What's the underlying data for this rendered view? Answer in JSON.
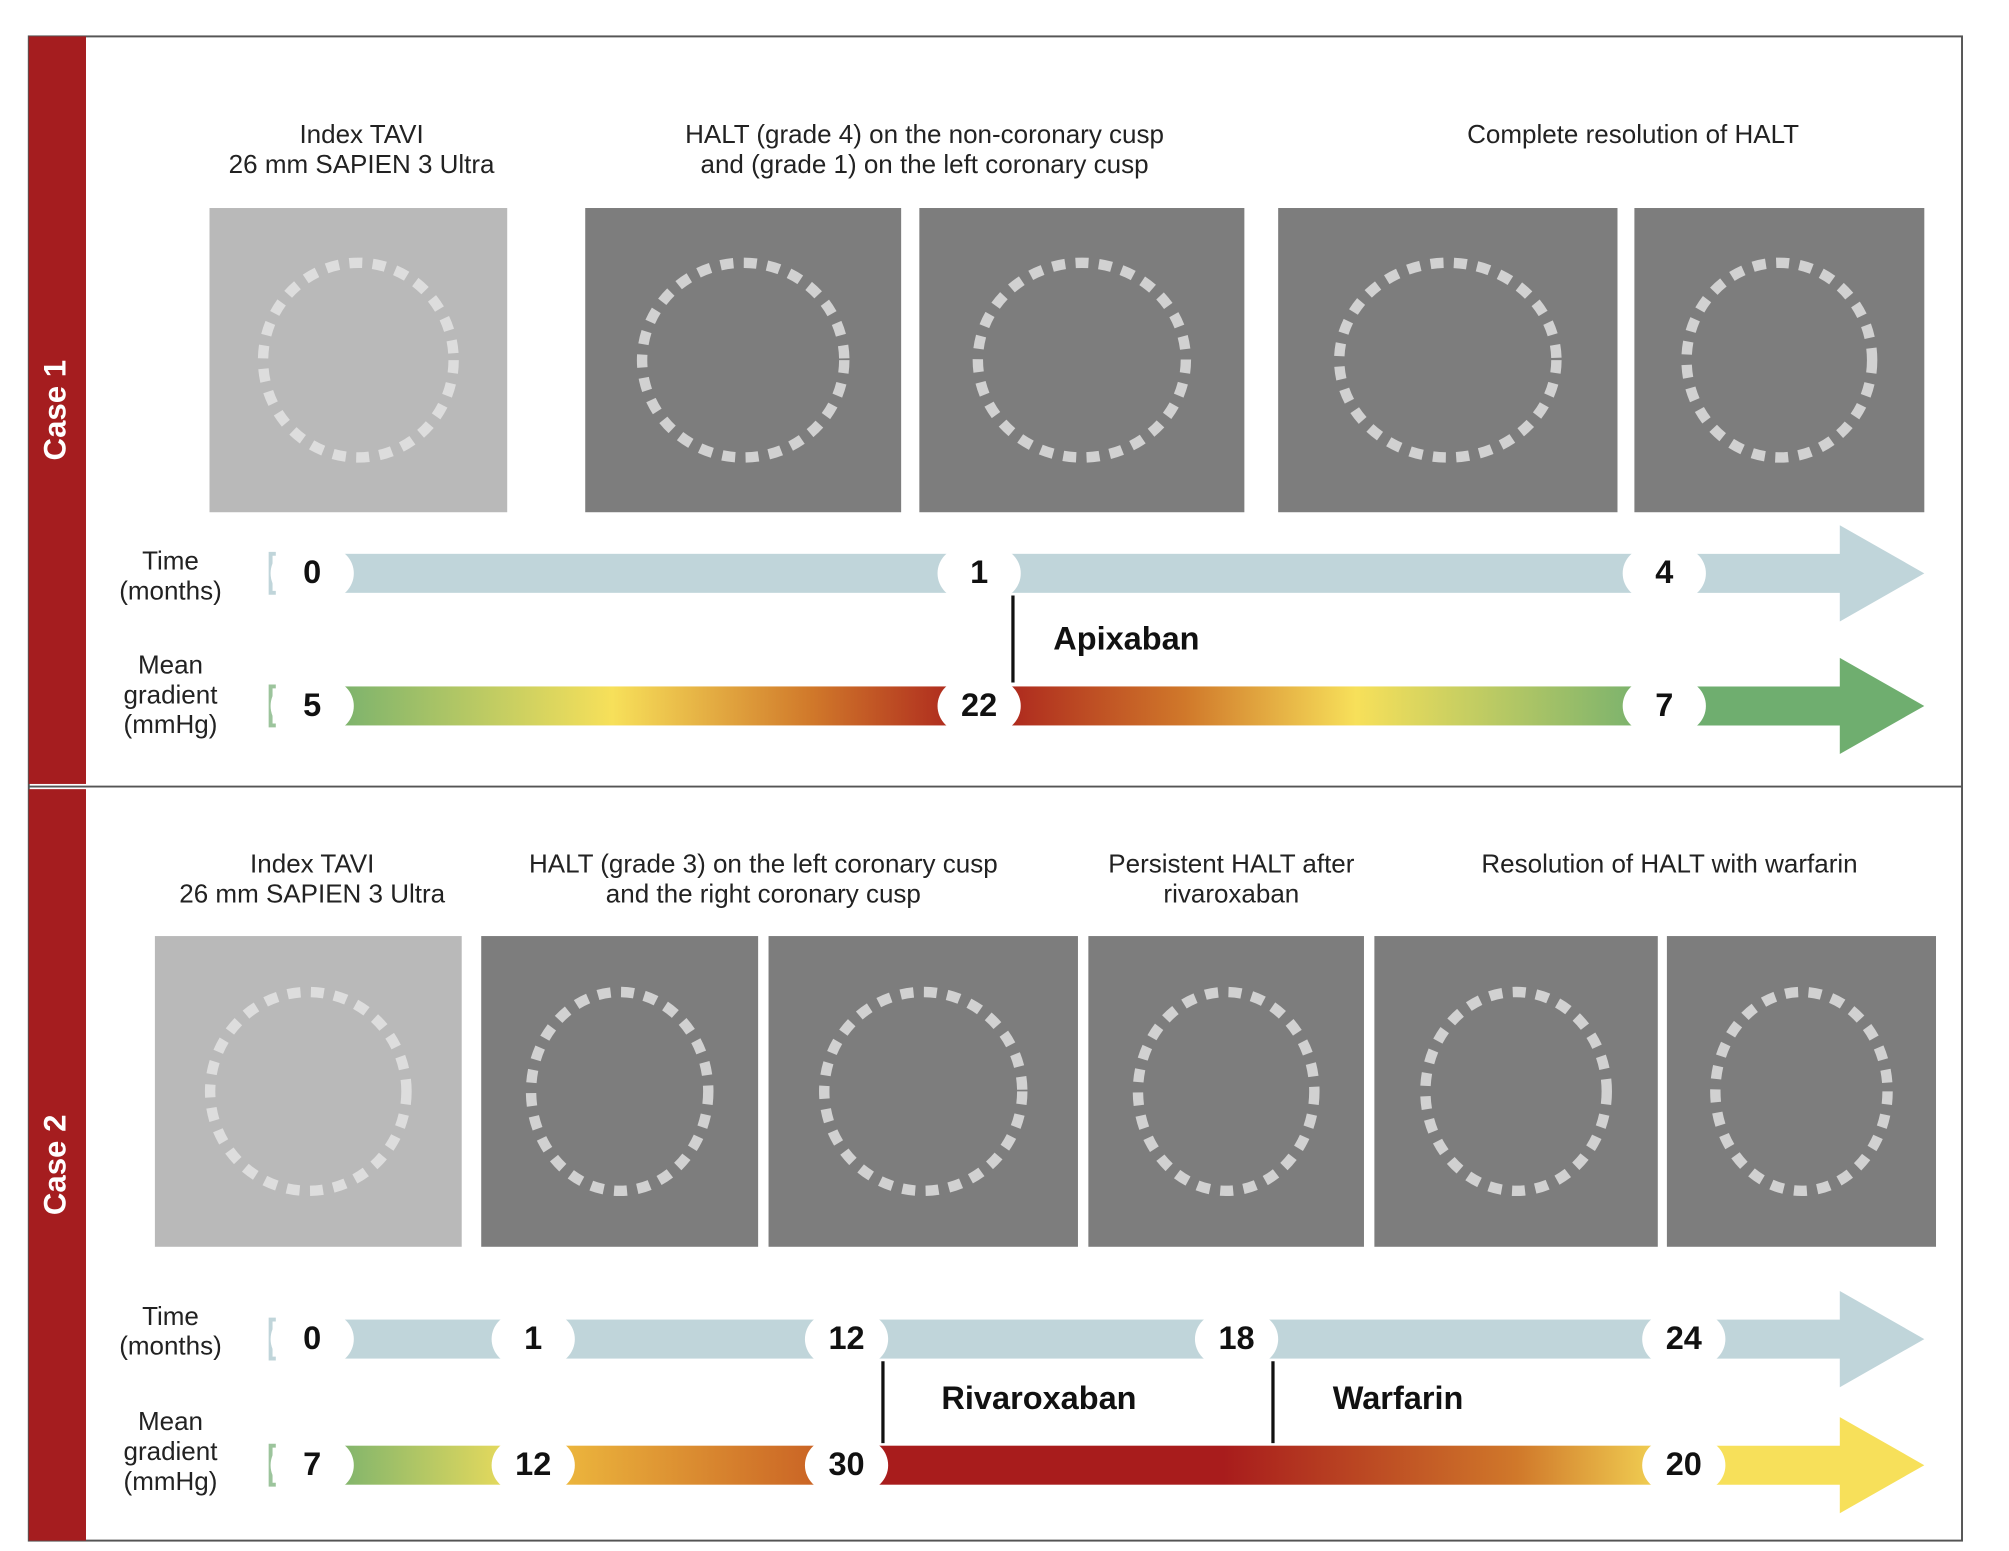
{
  "cases": [
    {
      "label": "Case 1",
      "panels": [
        {
          "title": [
            "Index TAVI",
            "26 mm SAPIEN 3 Ultra"
          ]
        },
        {
          "title": [
            "HALT (grade 4) on the non-coronary cusp",
            "and (grade 1) on the left coronary cusp"
          ]
        },
        {
          "title": [
            "Complete resolution of HALT"
          ]
        }
      ],
      "time_label": [
        "Time",
        "(months)"
      ],
      "times": [
        0,
        1,
        4
      ],
      "gradient_label": [
        "Mean",
        "gradient",
        "(mmHg)"
      ],
      "gradients": [
        5,
        22,
        7
      ],
      "drugs": [
        "Apixaban"
      ]
    },
    {
      "label": "Case 2",
      "panels": [
        {
          "title": [
            "Index TAVI",
            "26 mm SAPIEN 3 Ultra"
          ]
        },
        {
          "title": [
            "HALT (grade 3) on the left coronary cusp",
            "and the right coronary cusp"
          ]
        },
        {
          "title": [
            "Persistent HALT after",
            "rivaroxaban"
          ]
        },
        {
          "title": [
            "Resolution of HALT with warfarin"
          ]
        }
      ],
      "time_label": [
        "Time",
        "(months)"
      ],
      "times": [
        0,
        1,
        12,
        18,
        24
      ],
      "gradient_label": [
        "Mean",
        "gradient",
        "(mmHg)"
      ],
      "gradients": [
        7,
        12,
        30,
        20
      ],
      "drugs": [
        "Rivaroxaban",
        "Warfarin"
      ]
    }
  ]
}
